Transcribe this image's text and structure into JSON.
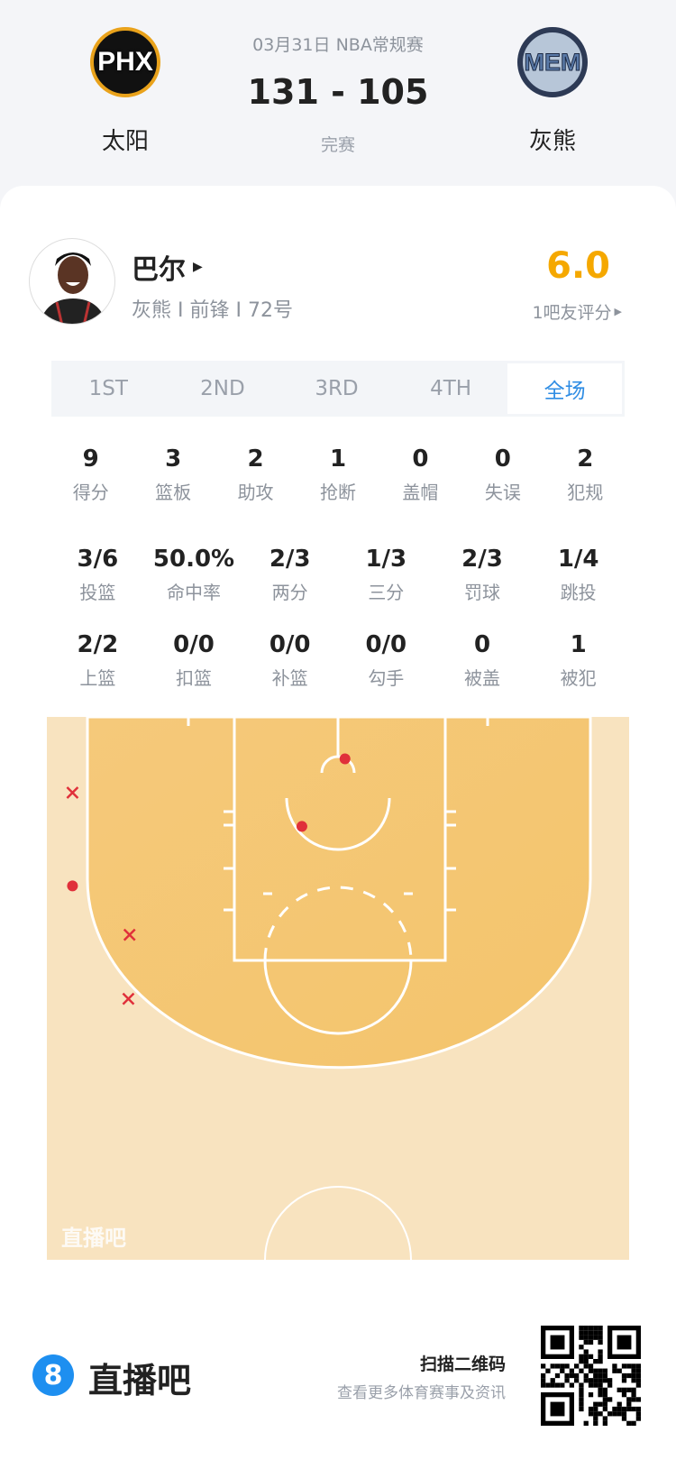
{
  "match": {
    "date_league": "03月31日 NBA常规赛",
    "score": "131 - 105",
    "status": "完赛",
    "home": {
      "name": "太阳",
      "logo_text": "PHX"
    },
    "away": {
      "name": "灰熊",
      "logo_text": "MEM"
    }
  },
  "player": {
    "name": "巴尔",
    "info": "灰熊 I 前锋 I 72号",
    "rating": "6.0",
    "rating_label": "1吧友评分",
    "rating_color": "#f5a800"
  },
  "tabs": [
    {
      "label": "1ST"
    },
    {
      "label": "2ND"
    },
    {
      "label": "3RD"
    },
    {
      "label": "4TH"
    },
    {
      "label": "全场",
      "active": true
    }
  ],
  "stats_row1": [
    {
      "v": "9",
      "l": "得分"
    },
    {
      "v": "3",
      "l": "篮板"
    },
    {
      "v": "2",
      "l": "助攻"
    },
    {
      "v": "1",
      "l": "抢断"
    },
    {
      "v": "0",
      "l": "盖帽"
    },
    {
      "v": "0",
      "l": "失误"
    },
    {
      "v": "2",
      "l": "犯规"
    }
  ],
  "stats_row2": [
    {
      "v": "3/6",
      "l": "投篮"
    },
    {
      "v": "50.0%",
      "l": "命中率"
    },
    {
      "v": "2/3",
      "l": "两分"
    },
    {
      "v": "1/3",
      "l": "三分"
    },
    {
      "v": "2/3",
      "l": "罚球"
    },
    {
      "v": "1/4",
      "l": "跳投"
    }
  ],
  "stats_row3": [
    {
      "v": "2/2",
      "l": "上篮"
    },
    {
      "v": "0/0",
      "l": "扣篮"
    },
    {
      "v": "0/0",
      "l": "补篮"
    },
    {
      "v": "0/0",
      "l": "勾手"
    },
    {
      "v": "0",
      "l": "被盖"
    },
    {
      "v": "1",
      "l": "被犯"
    }
  ],
  "shot_chart": {
    "watermark": "直播吧",
    "made_color": "#e0303a",
    "shots": [
      {
        "result": "missed",
        "x_ft": -22.8,
        "y_ft": 1.7
      },
      {
        "result": "made",
        "x_ft": -22.8,
        "y_ft": 9.7
      },
      {
        "result": "missed",
        "x_ft": -17.9,
        "y_ft": 13.9
      },
      {
        "result": "missed",
        "x_ft": -18.0,
        "y_ft": 19.4
      },
      {
        "result": "made",
        "x_ft": 0.6,
        "y_ft": -1.2
      },
      {
        "result": "made",
        "x_ft": -3.1,
        "y_ft": 4.6
      }
    ]
  },
  "footer": {
    "brand": "直播吧",
    "brand_icon": "8",
    "qr_title": "扫描二维码",
    "qr_sub": "查看更多体育赛事及资讯",
    "accent": "#1e8ff0"
  }
}
